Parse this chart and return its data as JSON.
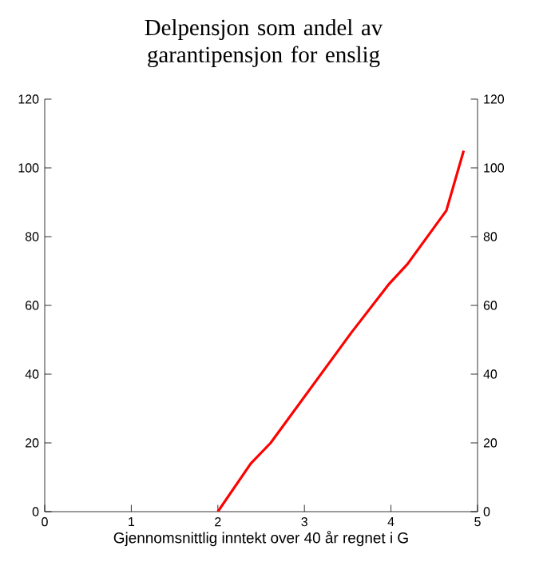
{
  "chart_data": {
    "type": "line",
    "title": "Delpensjon som andel av garantipensjon for enslig",
    "xlabel": "Gjennomsnittlig inntekt over 40 år regnet i G",
    "series": [
      {
        "color": "#ff0000",
        "x": [
          2.0,
          2.38,
          2.61,
          3.54,
          3.97,
          4.19,
          4.64,
          4.84
        ],
        "values": [
          0,
          14,
          20,
          52,
          66,
          72,
          87.6,
          105
        ]
      }
    ],
    "xlim": [
      0,
      5
    ],
    "xticks": [
      0,
      1,
      2,
      3,
      4,
      5
    ],
    "ylim": [
      0,
      120
    ],
    "yticks": [
      0,
      20,
      40,
      60,
      80,
      100,
      120
    ],
    "y2lim": [
      0,
      120
    ],
    "y2ticks": [
      0,
      20,
      40,
      60,
      80,
      100,
      120
    ]
  }
}
